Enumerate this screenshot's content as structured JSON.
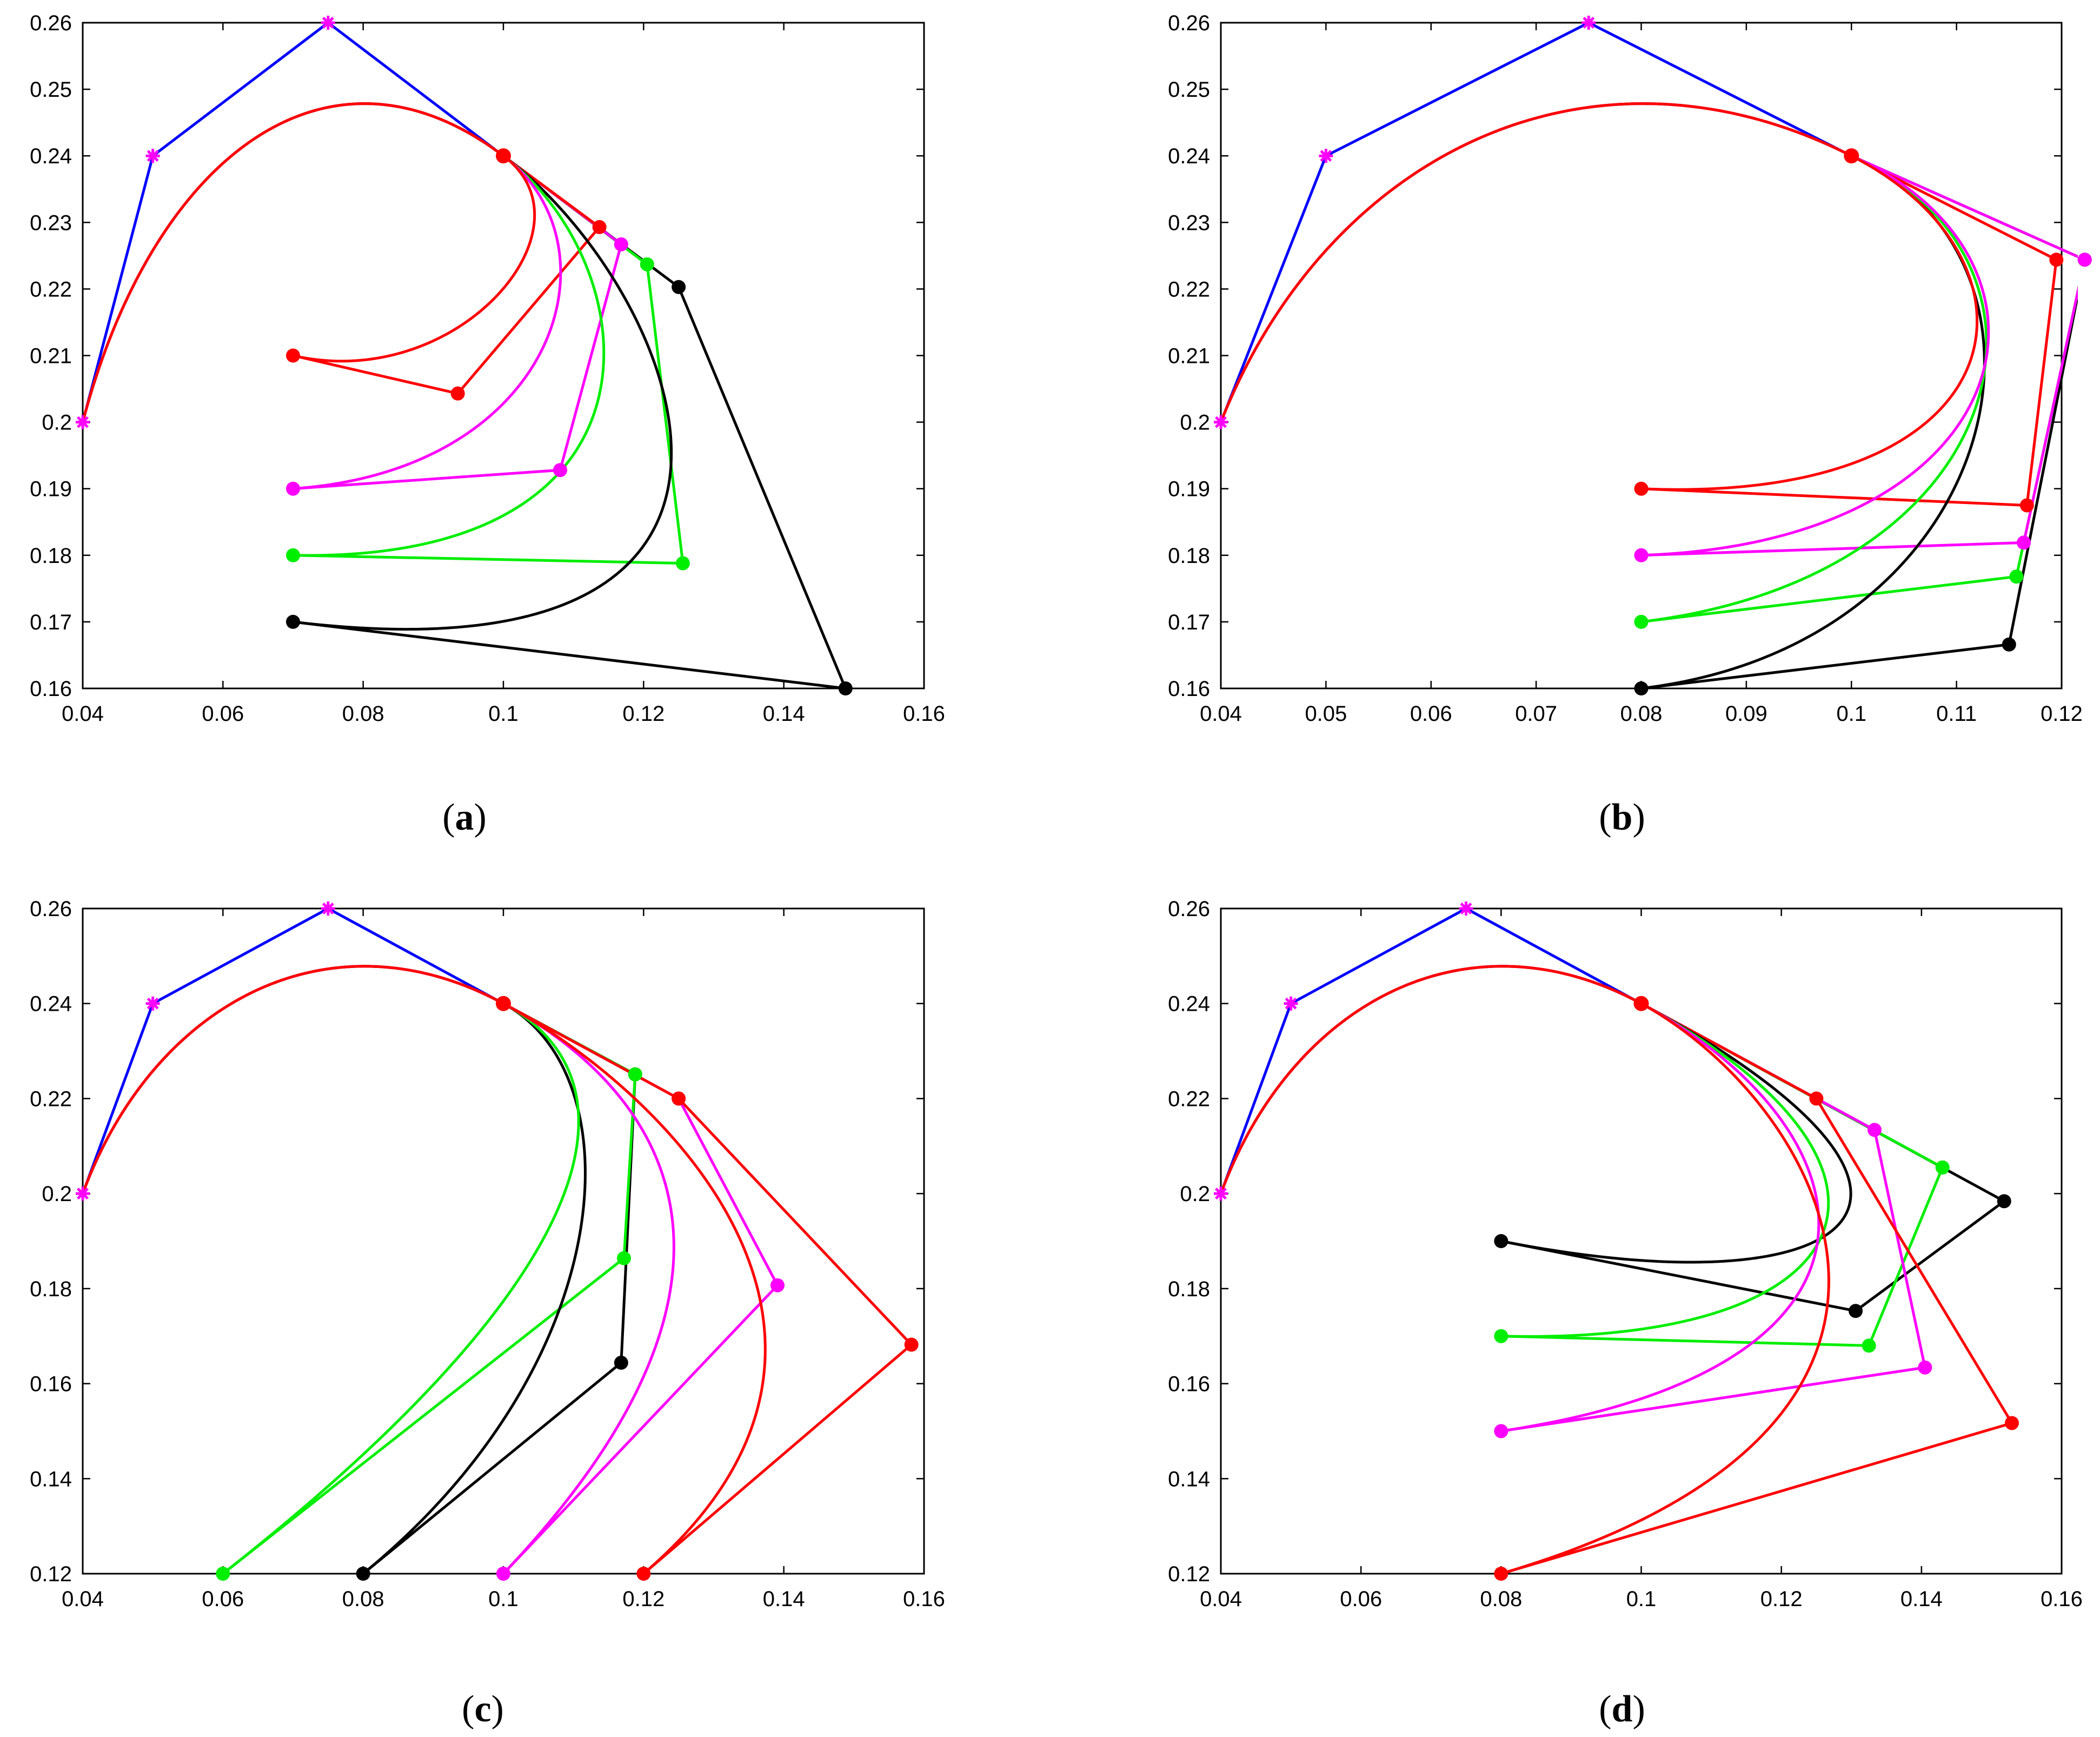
{
  "figure": {
    "panels": [
      {
        "id": "a",
        "caption_open": "(",
        "caption_letter": "a",
        "caption_close": ")"
      },
      {
        "id": "b",
        "caption_open": "(",
        "caption_letter": "b",
        "caption_close": ")"
      },
      {
        "id": "c",
        "caption_open": "(",
        "caption_letter": "c",
        "caption_close": ")"
      },
      {
        "id": "d",
        "caption_open": "(",
        "caption_letter": "d",
        "caption_close": ")"
      }
    ]
  },
  "colors": {
    "black": "#000000",
    "green": "#00ee00",
    "magenta": "#ff00ff",
    "red": "#ff0000",
    "blue": "#0000ff"
  },
  "chart_data": [
    {
      "type": "line",
      "panel": "a",
      "title": "",
      "xlabel": "",
      "ylabel": "",
      "xlim": [
        0.04,
        0.16
      ],
      "ylim": [
        0.16,
        0.26
      ],
      "xticks": [
        0.04,
        0.06,
        0.08,
        0.1,
        0.12,
        0.14,
        0.16
      ],
      "yticks": [
        0.16,
        0.17,
        0.18,
        0.19,
        0.2,
        0.21,
        0.22,
        0.23,
        0.24,
        0.25,
        0.26
      ],
      "xtick_labels": [
        "0.04",
        "0.06",
        "0.08",
        "0.1",
        "0.12",
        "0.14",
        "0.16"
      ],
      "ytick_labels": [
        "0.16",
        "0.17",
        "0.18",
        "0.19",
        "0.2",
        "0.21",
        "0.22",
        "0.23",
        "0.24",
        "0.25",
        "0.26"
      ],
      "fixed_polygon": {
        "color": "blue",
        "points": [
          [
            0.04,
            0.2
          ],
          [
            0.05,
            0.24
          ],
          [
            0.075,
            0.26
          ],
          [
            0.1,
            0.24
          ]
        ]
      },
      "series": [
        {
          "name": "black",
          "color": "black",
          "control_polygon": [
            [
              0.1,
              0.24
            ],
            [
              0.125,
              0.2203
            ],
            [
              0.1488,
              0.16
            ],
            [
              0.07,
              0.17
            ]
          ]
        },
        {
          "name": "green",
          "color": "green",
          "control_polygon": [
            [
              0.1,
              0.24
            ],
            [
              0.1205,
              0.2237
            ],
            [
              0.1256,
              0.1788
            ],
            [
              0.07,
              0.18
            ]
          ]
        },
        {
          "name": "magenta",
          "color": "magenta",
          "control_polygon": [
            [
              0.1,
              0.24
            ],
            [
              0.1168,
              0.2267
            ],
            [
              0.1081,
              0.1928
            ],
            [
              0.07,
              0.19
            ]
          ]
        },
        {
          "name": "red",
          "color": "red",
          "control_polygon": [
            [
              0.1,
              0.24
            ],
            [
              0.1137,
              0.2293
            ],
            [
              0.0935,
              0.2043
            ],
            [
              0.07,
              0.21
            ]
          ]
        }
      ]
    },
    {
      "type": "line",
      "panel": "b",
      "title": "",
      "xlabel": "",
      "ylabel": "",
      "xlim": [
        0.04,
        0.12
      ],
      "ylim": [
        0.16,
        0.26
      ],
      "xticks": [
        0.04,
        0.05,
        0.06,
        0.07,
        0.08,
        0.09,
        0.1,
        0.11,
        0.12
      ],
      "yticks": [
        0.16,
        0.17,
        0.18,
        0.19,
        0.2,
        0.21,
        0.22,
        0.23,
        0.24,
        0.25,
        0.26
      ],
      "xtick_labels": [
        "0.04",
        "0.05",
        "0.06",
        "0.07",
        "0.08",
        "0.09",
        "0.1",
        "0.11",
        "0.12"
      ],
      "ytick_labels": [
        "0.16",
        "0.17",
        "0.18",
        "0.19",
        "0.2",
        "0.21",
        "0.22",
        "0.23",
        "0.24",
        "0.25",
        "0.26"
      ],
      "fixed_polygon": {
        "color": "blue",
        "points": [
          [
            0.04,
            0.2
          ],
          [
            0.05,
            0.24
          ],
          [
            0.075,
            0.26
          ],
          [
            0.1,
            0.24
          ]
        ]
      },
      "series": [
        {
          "name": "black",
          "color": "black",
          "control_polygon": [
            [
              0.1,
              0.24
            ],
            [
              0.1222,
              0.2244
            ],
            [
              0.115,
              0.1666
            ],
            [
              0.08,
              0.16
            ]
          ]
        },
        {
          "name": "green",
          "color": "green",
          "control_polygon": [
            [
              0.1,
              0.24
            ],
            [
              0.1222,
              0.2244
            ],
            [
              0.1157,
              0.1768
            ],
            [
              0.08,
              0.17
            ]
          ]
        },
        {
          "name": "magenta",
          "color": "magenta",
          "control_polygon": [
            [
              0.1,
              0.24
            ],
            [
              0.1222,
              0.2244
            ],
            [
              0.1164,
              0.1819
            ],
            [
              0.08,
              0.18
            ]
          ]
        },
        {
          "name": "red",
          "color": "red",
          "control_polygon": [
            [
              0.1,
              0.24
            ],
            [
              0.1195,
              0.2244
            ],
            [
              0.1167,
              0.1875
            ],
            [
              0.08,
              0.19
            ]
          ]
        }
      ]
    },
    {
      "type": "line",
      "panel": "c",
      "title": "",
      "xlabel": "",
      "ylabel": "",
      "xlim": [
        0.04,
        0.16
      ],
      "ylim": [
        0.12,
        0.26
      ],
      "xticks": [
        0.04,
        0.06,
        0.08,
        0.1,
        0.12,
        0.14,
        0.16
      ],
      "yticks": [
        0.12,
        0.14,
        0.16,
        0.18,
        0.2,
        0.22,
        0.24,
        0.26
      ],
      "xtick_labels": [
        "0.04",
        "0.06",
        "0.08",
        "0.1",
        "0.12",
        "0.14",
        "0.16"
      ],
      "ytick_labels": [
        "0.12",
        "0.14",
        "0.16",
        "0.18",
        "0.2",
        "0.22",
        "0.24",
        "0.26"
      ],
      "fixed_polygon": {
        "color": "blue",
        "points": [
          [
            0.04,
            0.2
          ],
          [
            0.05,
            0.24
          ],
          [
            0.075,
            0.26
          ],
          [
            0.1,
            0.24
          ]
        ]
      },
      "series": [
        {
          "name": "black",
          "color": "black",
          "control_polygon": [
            [
              0.1,
              0.24
            ],
            [
              0.1188,
              0.2251
            ],
            [
              0.1168,
              0.1644
            ],
            [
              0.08,
              0.12
            ]
          ]
        },
        {
          "name": "green",
          "color": "green",
          "control_polygon": [
            [
              0.1,
              0.24
            ],
            [
              0.1188,
              0.2251
            ],
            [
              0.1172,
              0.1864
            ],
            [
              0.06,
              0.12
            ]
          ]
        },
        {
          "name": "magenta",
          "color": "magenta",
          "control_polygon": [
            [
              0.1,
              0.24
            ],
            [
              0.125,
              0.22
            ],
            [
              0.1391,
              0.1807
            ],
            [
              0.1,
              0.12
            ]
          ]
        },
        {
          "name": "red",
          "color": "red",
          "control_polygon": [
            [
              0.1,
              0.24
            ],
            [
              0.125,
              0.22
            ],
            [
              0.1582,
              0.1682
            ],
            [
              0.12,
              0.12
            ]
          ]
        }
      ]
    },
    {
      "type": "line",
      "panel": "d",
      "title": "",
      "xlabel": "",
      "ylabel": "",
      "xlim": [
        0.04,
        0.16
      ],
      "ylim": [
        0.12,
        0.26
      ],
      "xticks": [
        0.04,
        0.06,
        0.08,
        0.1,
        0.12,
        0.14,
        0.16
      ],
      "yticks": [
        0.12,
        0.14,
        0.16,
        0.18,
        0.2,
        0.22,
        0.24,
        0.26
      ],
      "xtick_labels": [
        "0.04",
        "0.06",
        "0.08",
        "0.1",
        "0.12",
        "0.14",
        "0.16"
      ],
      "ytick_labels": [
        "0.12",
        "0.14",
        "0.16",
        "0.18",
        "0.2",
        "0.22",
        "0.24",
        "0.26"
      ],
      "fixed_polygon": {
        "color": "blue",
        "points": [
          [
            0.04,
            0.2
          ],
          [
            0.05,
            0.24
          ],
          [
            0.075,
            0.26
          ],
          [
            0.1,
            0.24
          ]
        ]
      },
      "series": [
        {
          "name": "black",
          "color": "black",
          "control_polygon": [
            [
              0.1,
              0.24
            ],
            [
              0.1518,
              0.1984
            ],
            [
              0.1306,
              0.1753
            ],
            [
              0.08,
              0.19
            ]
          ]
        },
        {
          "name": "green",
          "color": "green",
          "control_polygon": [
            [
              0.1,
              0.24
            ],
            [
              0.143,
              0.2055
            ],
            [
              0.1325,
              0.168
            ],
            [
              0.08,
              0.17
            ]
          ]
        },
        {
          "name": "magenta",
          "color": "magenta",
          "control_polygon": [
            [
              0.1,
              0.24
            ],
            [
              0.1333,
              0.2134
            ],
            [
              0.1405,
              0.1634
            ],
            [
              0.08,
              0.15
            ]
          ]
        },
        {
          "name": "red",
          "color": "red",
          "control_polygon": [
            [
              0.1,
              0.24
            ],
            [
              0.125,
              0.22
            ],
            [
              0.1529,
              0.1517
            ],
            [
              0.08,
              0.12
            ]
          ]
        }
      ]
    }
  ]
}
